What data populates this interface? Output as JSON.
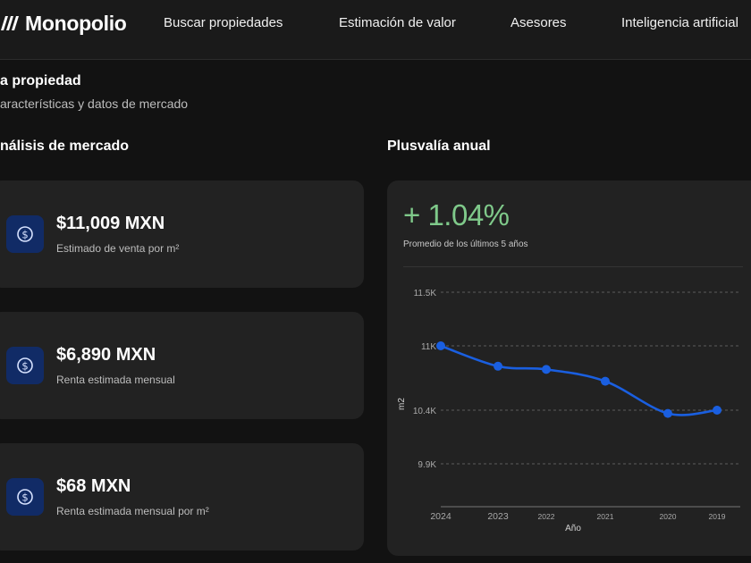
{
  "header": {
    "brand": "Monopolio",
    "nav": [
      "Buscar propiedades",
      "Estimación de valor",
      "Asesores",
      "Inteligencia artificial"
    ]
  },
  "section": {
    "title": "a propiedad",
    "subtitle": "aracterísticas y datos de mercado"
  },
  "market": {
    "title": "nálisis de mercado",
    "cards": [
      {
        "value": "$11,009 MXN",
        "label": "Estimado de venta por m²",
        "icon": "dollar-coin-icon"
      },
      {
        "value": "$6,890 MXN",
        "label": "Renta estimada mensual",
        "icon": "dollar-coin-icon"
      },
      {
        "value": "$68 MXN",
        "label": "Renta estimada mensual por m²",
        "icon": "dollar-coin-icon"
      }
    ]
  },
  "appreciation": {
    "title": "Plusvalía anual",
    "value": "+ 1.04%",
    "subtitle": "Promedio de los últimos 5 años"
  },
  "colors": {
    "accent_blue": "#1a5fe0",
    "growth_green": "#7fc98a",
    "icon_bg": "#112b66",
    "card_bg": "#222222",
    "page_bg": "#121212"
  },
  "chart_data": {
    "type": "line",
    "x": [
      "2024",
      "2023",
      "2022",
      "2021",
      "2020",
      "2019"
    ],
    "series": [
      {
        "values": [
          11000,
          10810,
          10780,
          10670,
          10370,
          10400
        ]
      }
    ],
    "yticks": [
      9900,
      10400,
      11000,
      11500
    ],
    "ytick_labels": [
      "9.9K",
      "10.4K",
      "11K",
      "11.5K"
    ],
    "ylim": [
      9500,
      11500
    ],
    "xlabel": "Año",
    "ylabel": "m2",
    "grid": true
  }
}
